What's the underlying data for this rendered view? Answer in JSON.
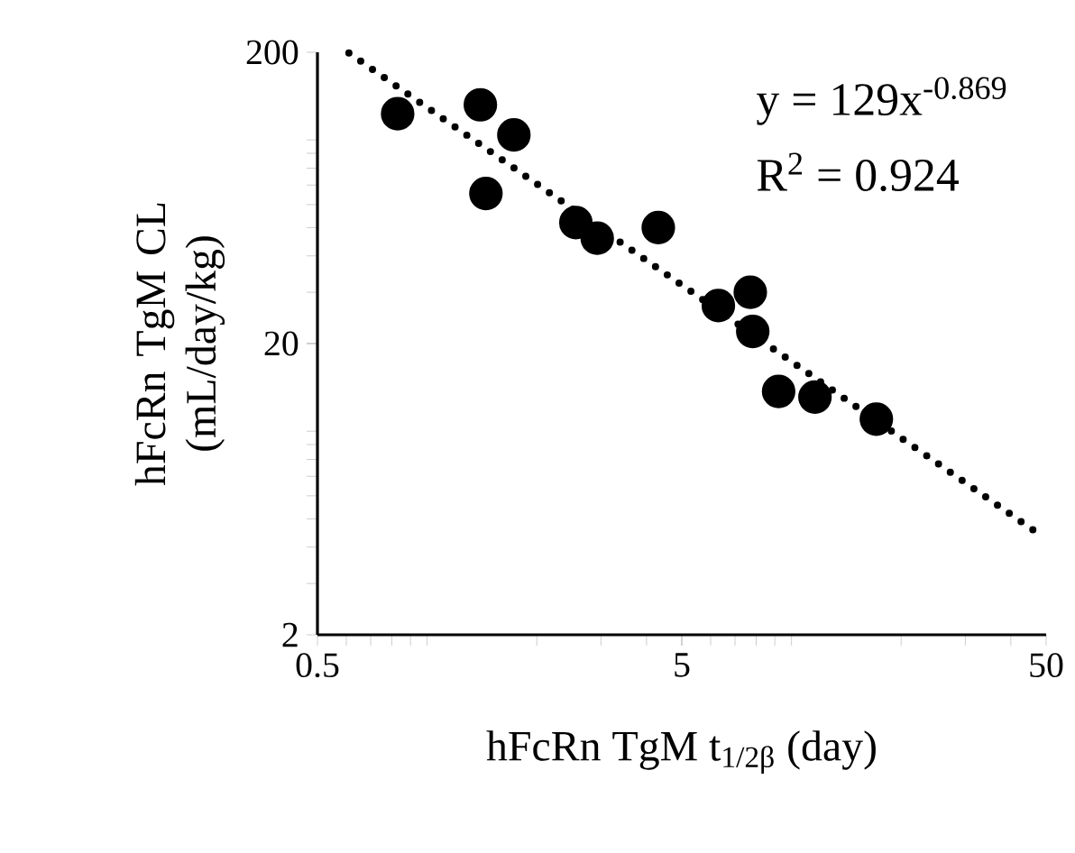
{
  "chart_data": {
    "type": "scatter",
    "xlabel": "hFcRn TgM t$_{1/2β}$ (day)",
    "ylabel": "hFcRn TgM CL (mL/day/kg)",
    "log": "xy",
    "xlim": [
      0.5,
      50
    ],
    "ylim": [
      2,
      200
    ],
    "xticks": [
      0.5,
      5,
      50
    ],
    "yticks": [
      2,
      20,
      200
    ],
    "grid": false,
    "annotations": [
      "y = 129x$^{-0.869}$",
      "R$^{2}$ = 0.924"
    ],
    "series": [
      {
        "color": "#000000",
        "marker": "circle",
        "x": [
          0.83,
          1.4,
          1.73,
          1.45,
          2.56,
          2.93,
          4.31,
          6.3,
          7.71,
          7.83,
          9.22,
          11.6,
          17.1
        ],
        "values": [
          123,
          132,
          104,
          65.5,
          52,
          46,
          50,
          27,
          30,
          22,
          13.7,
          13.1,
          11.0
        ]
      },
      {
        "type": "line",
        "color": "#000000",
        "line_style": "dotted",
        "marker": "none",
        "x": [
          0.61,
          47
        ],
        "values": [
          199,
          4.5
        ]
      }
    ]
  }
}
